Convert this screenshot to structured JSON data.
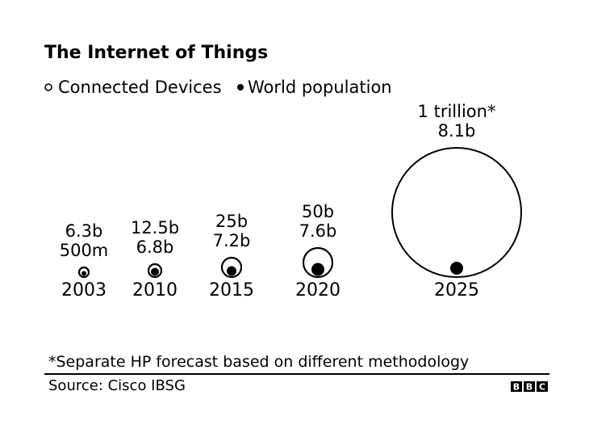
{
  "chart_data": {
    "type": "bubble",
    "title": "The Internet of Things",
    "legend": [
      {
        "label": "Connected Devices",
        "marker": "open-circle"
      },
      {
        "label": "World population",
        "marker": "filled-circle"
      }
    ],
    "legend_placement": "top-left",
    "categories": [
      "2003",
      "2010",
      "2015",
      "2020",
      "2025"
    ],
    "series": [
      {
        "name": "Connected Devices",
        "values_billion": [
          0.5,
          12.5,
          25,
          50,
          1000
        ],
        "labels": [
          "500m",
          "12.5b",
          "25b",
          "50b",
          "1 trillion*"
        ]
      },
      {
        "name": "World population",
        "values_billion": [
          6.3,
          6.8,
          7.2,
          7.6,
          8.1
        ],
        "labels": [
          "6.3b",
          "6.8b",
          "7.2b",
          "7.6b",
          "8.1b"
        ]
      }
    ],
    "label_order": [
      [
        "6.3b",
        "500m"
      ],
      [
        "12.5b",
        "6.8b"
      ],
      [
        "25b",
        "7.2b"
      ],
      [
        "50b",
        "7.6b"
      ],
      [
        "1 trillion*",
        "8.1b"
      ]
    ],
    "footnote": "*Separate HP forecast based on different methodology",
    "source": "Source:  Cisco IBSG",
    "logo": [
      "B",
      "B",
      "C"
    ]
  }
}
